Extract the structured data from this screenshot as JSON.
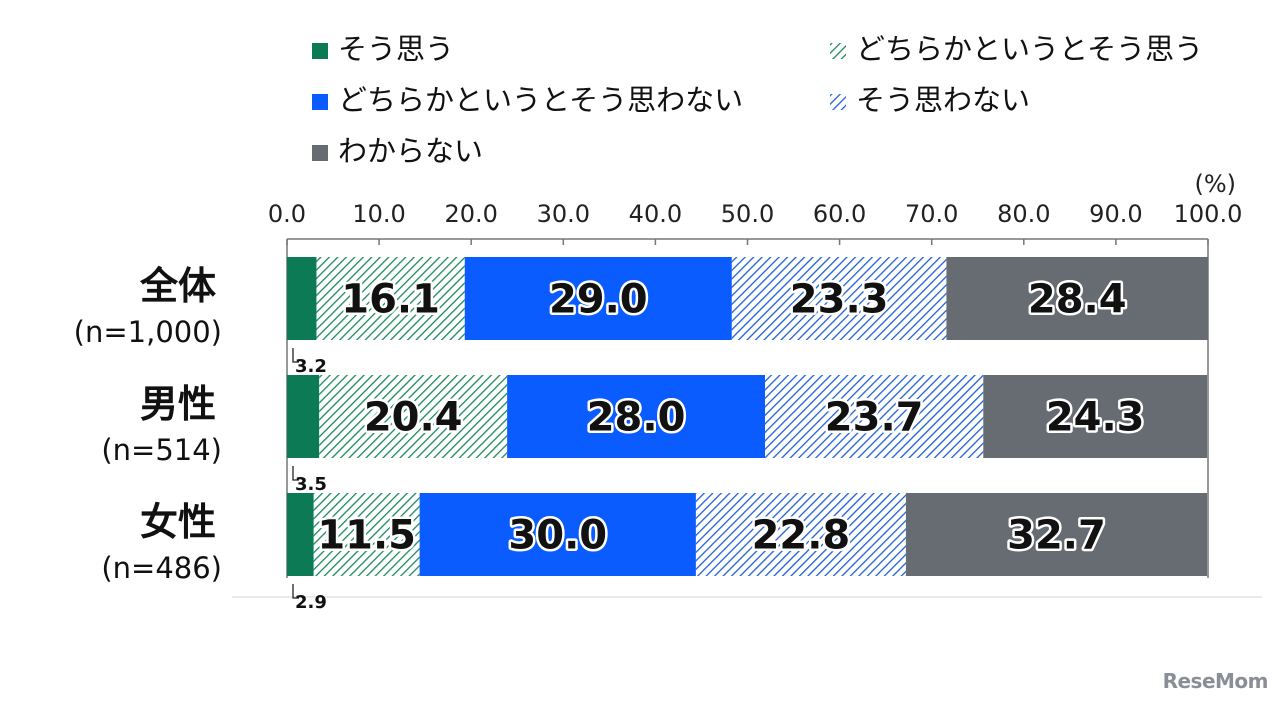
{
  "chart_data": {
    "type": "bar",
    "orientation": "horizontal",
    "stacked": true,
    "unit": "(%)",
    "xlim": [
      0,
      100
    ],
    "x_ticks": [
      "0.0",
      "10.0",
      "20.0",
      "30.0",
      "40.0",
      "50.0",
      "60.0",
      "70.0",
      "80.0",
      "90.0",
      "100.0"
    ],
    "categories": [
      {
        "label": "全体",
        "sublabel": "(n=1,000)"
      },
      {
        "label": "男性",
        "sublabel": "(n=514)"
      },
      {
        "label": "女性",
        "sublabel": "(n=486)"
      }
    ],
    "series": [
      {
        "name": "そう思う",
        "values": [
          3.2,
          3.5,
          2.9
        ],
        "color": "#0b7a55",
        "pattern": "solid"
      },
      {
        "name": "どちらかというとそう思う",
        "values": [
          16.1,
          20.4,
          11.5
        ],
        "color": "#1a8a5a",
        "pattern": "hatch"
      },
      {
        "name": "どちらかというとそう思わない",
        "values": [
          29.0,
          28.0,
          30.0
        ],
        "color": "#0a5cff",
        "pattern": "solid"
      },
      {
        "name": "そう思わない",
        "values": [
          23.3,
          23.7,
          22.8
        ],
        "color": "#1f5fd6",
        "pattern": "hatch"
      },
      {
        "name": "わからない",
        "values": [
          28.4,
          24.3,
          32.7
        ],
        "color": "#676c73",
        "pattern": "solid"
      }
    ],
    "legend_position": "top"
  },
  "watermark": "ReseMom"
}
